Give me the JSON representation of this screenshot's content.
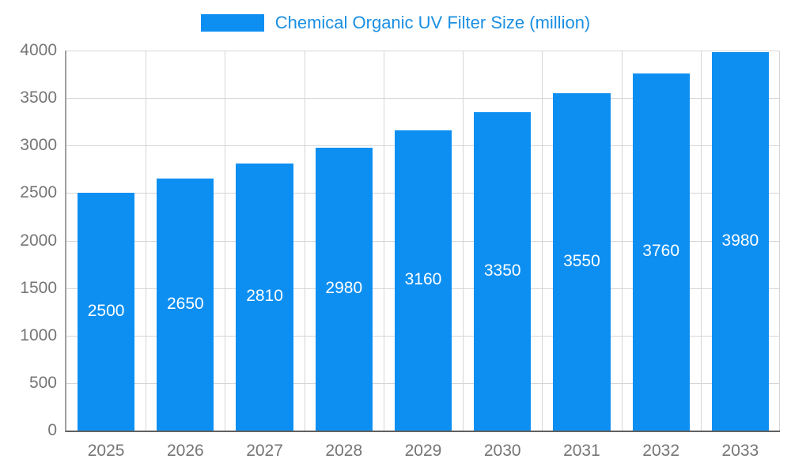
{
  "colors": {
    "bar": "#0d8ff2",
    "title": "#1a8fe3",
    "grid": "#d6d6d6",
    "tick_text": "#757575",
    "bar_label_text": "#ffffff"
  },
  "chart_data": {
    "type": "bar",
    "title": "Chemical Organic UV Filter Size (million)",
    "categories": [
      "2025",
      "2026",
      "2027",
      "2028",
      "2029",
      "2030",
      "2031",
      "2032",
      "2033"
    ],
    "values": [
      2500,
      2650,
      2810,
      2980,
      3160,
      3350,
      3550,
      3760,
      3980
    ],
    "data_labels": [
      "2500",
      "2650",
      "2810",
      "2980",
      "3160",
      "3350",
      "3550",
      "3760",
      "3980"
    ],
    "xlabel": "",
    "ylabel": "",
    "ylim": [
      0,
      4000
    ],
    "yticks": [
      0,
      500,
      1000,
      1500,
      2000,
      2500,
      3000,
      3500,
      4000
    ],
    "grid": "on",
    "legend_position": "top-center"
  }
}
